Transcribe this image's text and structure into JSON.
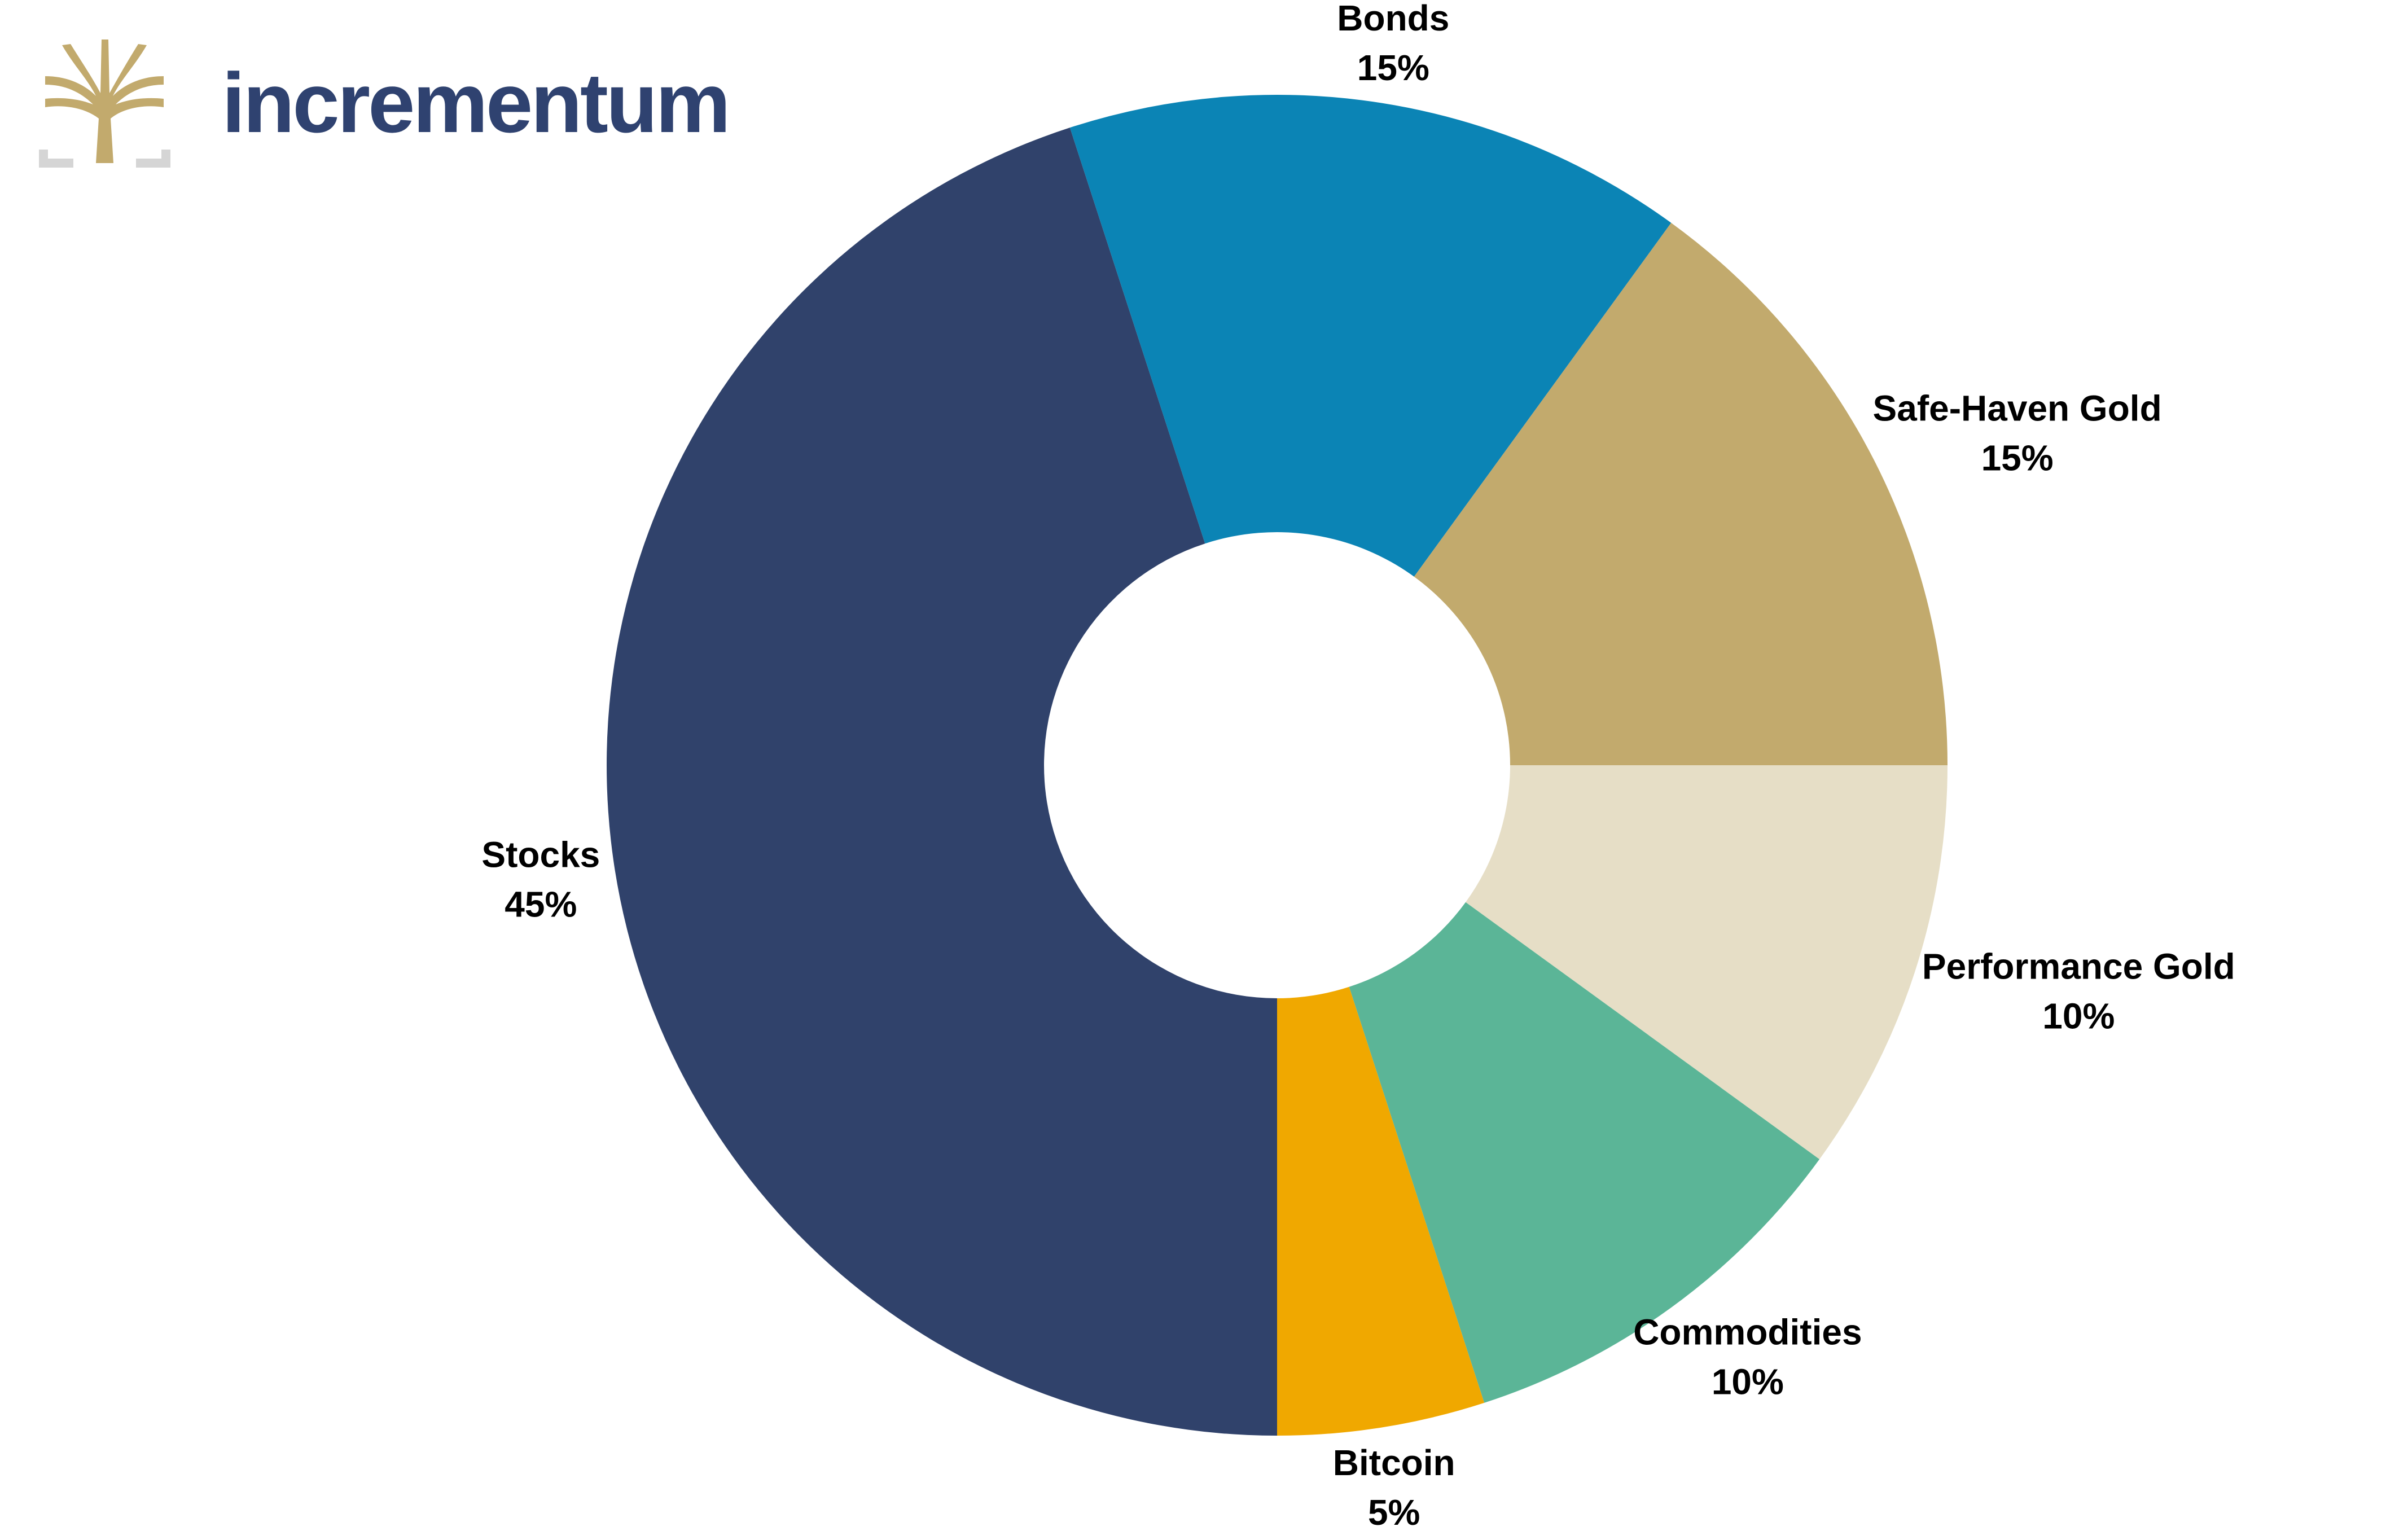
{
  "chart_data": {
    "type": "donut",
    "logo": "incrementum",
    "categories": [
      "Performance Gold",
      "Commodities",
      "Bitcoin",
      "Stocks",
      "Bonds",
      "Safe-Haven Gold"
    ],
    "values": [
      10,
      10,
      5,
      45,
      15,
      15
    ],
    "value_labels": [
      "10%",
      "10%",
      "5%",
      "45%",
      "15%",
      "15%"
    ],
    "colors": [
      "#e6dec6",
      "#5bb597",
      "#f0a800",
      "#30426b",
      "#0b84b5",
      "#c2aa6d"
    ]
  }
}
